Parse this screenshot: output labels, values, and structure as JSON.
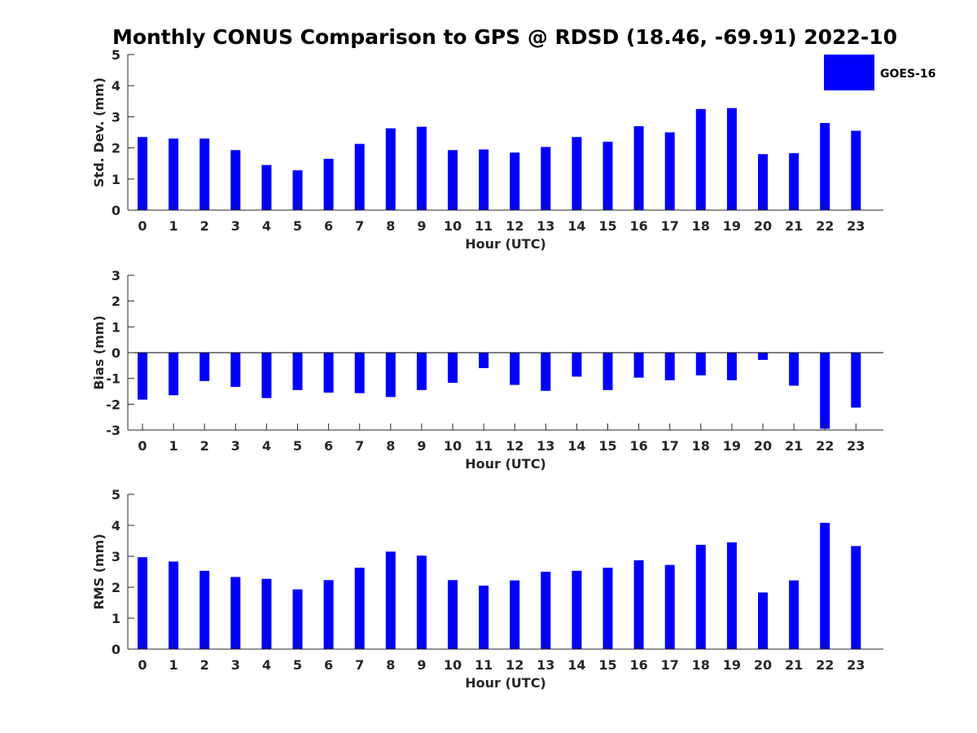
{
  "title": "Monthly CONUS Comparison to GPS @ RDSD (18.46, -69.91) 2022-10",
  "legend": {
    "label": "GOES-16",
    "color": "#0000ff"
  },
  "chart_data": [
    {
      "type": "bar",
      "xlabel": "Hour (UTC)",
      "ylabel": "Std. Dev. (mm)",
      "ylim": [
        0,
        5
      ],
      "yticks": [
        0,
        1,
        2,
        3,
        4,
        5
      ],
      "categories": [
        "0",
        "1",
        "2",
        "3",
        "4",
        "5",
        "6",
        "7",
        "8",
        "9",
        "10",
        "11",
        "12",
        "13",
        "14",
        "15",
        "16",
        "17",
        "18",
        "19",
        "20",
        "21",
        "22",
        "23"
      ],
      "series": [
        {
          "name": "GOES-16",
          "color": "#0000ff",
          "values": [
            2.35,
            2.3,
            2.3,
            1.93,
            1.45,
            1.28,
            1.65,
            2.13,
            2.63,
            2.68,
            1.93,
            1.95,
            1.85,
            2.03,
            2.35,
            2.2,
            2.7,
            2.5,
            3.25,
            3.28,
            1.8,
            1.83,
            2.8,
            2.55
          ]
        }
      ],
      "grid": false
    },
    {
      "type": "bar",
      "xlabel": "Hour (UTC)",
      "ylabel": "Bias (mm)",
      "ylim": [
        -3,
        3
      ],
      "yticks": [
        -3,
        -2,
        -1,
        0,
        1,
        2,
        3
      ],
      "categories": [
        "0",
        "1",
        "2",
        "3",
        "4",
        "5",
        "6",
        "7",
        "8",
        "9",
        "10",
        "11",
        "12",
        "13",
        "14",
        "15",
        "16",
        "17",
        "18",
        "19",
        "20",
        "21",
        "22",
        "23"
      ],
      "series": [
        {
          "name": "GOES-16",
          "color": "#0000ff",
          "values": [
            -1.82,
            -1.65,
            -1.1,
            -1.33,
            -1.76,
            -1.45,
            -1.55,
            -1.57,
            -1.72,
            -1.45,
            -1.17,
            -0.6,
            -1.25,
            -1.48,
            -0.93,
            -1.45,
            -0.97,
            -1.07,
            -0.88,
            -1.07,
            -0.28,
            -1.28,
            -2.95,
            -2.13
          ]
        }
      ],
      "grid": false
    },
    {
      "type": "bar",
      "xlabel": "Hour (UTC)",
      "ylabel": "RMS (mm)",
      "ylim": [
        0,
        5
      ],
      "yticks": [
        0,
        1,
        2,
        3,
        4,
        5
      ],
      "categories": [
        "0",
        "1",
        "2",
        "3",
        "4",
        "5",
        "6",
        "7",
        "8",
        "9",
        "10",
        "11",
        "12",
        "13",
        "14",
        "15",
        "16",
        "17",
        "18",
        "19",
        "20",
        "21",
        "22",
        "23"
      ],
      "series": [
        {
          "name": "GOES-16",
          "color": "#0000ff",
          "values": [
            2.97,
            2.83,
            2.53,
            2.33,
            2.27,
            1.93,
            2.23,
            2.63,
            3.15,
            3.02,
            2.23,
            2.05,
            2.22,
            2.5,
            2.53,
            2.63,
            2.87,
            2.72,
            3.37,
            3.45,
            1.83,
            2.22,
            4.08,
            3.33
          ]
        }
      ],
      "grid": false
    }
  ]
}
